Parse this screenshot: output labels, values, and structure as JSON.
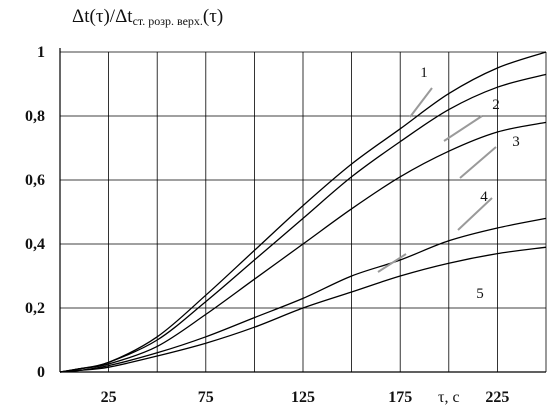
{
  "chart_data": {
    "type": "line",
    "title": "",
    "ylabel": {
      "main": "Δt(τ)/Δt",
      "sub": "ст. розр. верх.",
      "tail": "(τ)"
    },
    "xlabel": "τ, с",
    "xlim": [
      0,
      250
    ],
    "ylim": [
      0,
      1
    ],
    "xticks": [
      "25",
      "75",
      "125",
      "175",
      "225"
    ],
    "xtick_values": [
      25,
      75,
      125,
      175,
      225
    ],
    "yticks": [
      "0",
      "0,2",
      "0,4",
      "0,6",
      "0,8",
      "1"
    ],
    "ytick_values": [
      0,
      0.2,
      0.4,
      0.6,
      0.8,
      1.0
    ],
    "x": [
      0,
      10,
      25,
      50,
      75,
      100,
      125,
      150,
      175,
      200,
      225,
      250
    ],
    "series": [
      {
        "name": "1",
        "values": [
          0,
          0.01,
          0.03,
          0.11,
          0.24,
          0.38,
          0.52,
          0.65,
          0.76,
          0.87,
          0.95,
          1.0
        ]
      },
      {
        "name": "2",
        "values": [
          0,
          0.01,
          0.03,
          0.1,
          0.22,
          0.35,
          0.48,
          0.61,
          0.72,
          0.82,
          0.89,
          0.93
        ]
      },
      {
        "name": "3",
        "values": [
          0,
          0.01,
          0.025,
          0.08,
          0.18,
          0.29,
          0.4,
          0.51,
          0.61,
          0.69,
          0.75,
          0.78
        ]
      },
      {
        "name": "4",
        "values": [
          0,
          0.005,
          0.02,
          0.06,
          0.11,
          0.17,
          0.23,
          0.3,
          0.35,
          0.41,
          0.45,
          0.48
        ]
      },
      {
        "name": "5",
        "values": [
          0,
          0.005,
          0.015,
          0.05,
          0.09,
          0.14,
          0.2,
          0.25,
          0.3,
          0.34,
          0.37,
          0.39
        ]
      }
    ],
    "grid": true
  }
}
